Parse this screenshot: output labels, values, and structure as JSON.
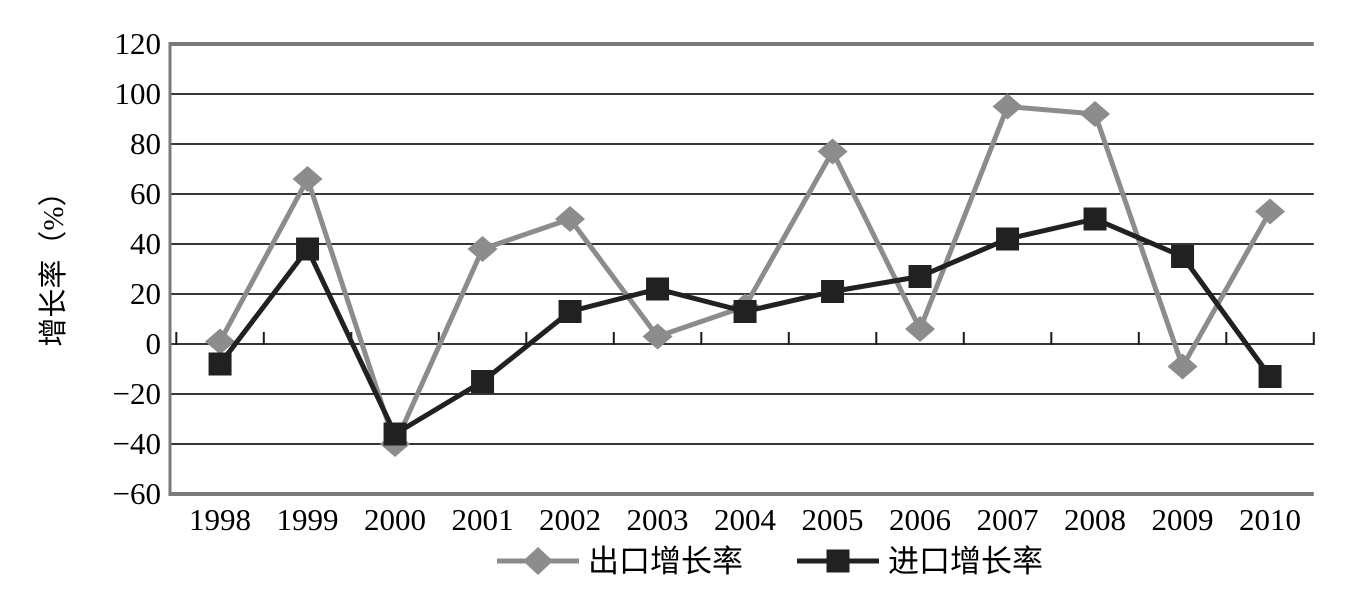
{
  "figure": {
    "background": "#ffffff",
    "colors": {
      "gridline": "#1a1a1a",
      "frame": "#7a7a7a",
      "text": "#000000"
    }
  },
  "chart_data": {
    "type": "line",
    "title": "",
    "xlabel": "",
    "ylabel": "增长率（%）",
    "categories": [
      "1998",
      "1999",
      "2000",
      "2001",
      "2002",
      "2003",
      "2004",
      "2005",
      "2006",
      "2007",
      "2008",
      "2009",
      "2010"
    ],
    "series": [
      {
        "name": "出口增长率",
        "marker": "diamond",
        "color": "#8c8c8c",
        "values": [
          1,
          66,
          -40,
          38,
          50,
          3,
          15,
          77,
          6,
          95,
          92,
          -9,
          53
        ]
      },
      {
        "name": "进口增长率",
        "marker": "square",
        "color": "#212121",
        "values": [
          -8,
          38,
          -36,
          -15,
          13,
          22,
          13,
          21,
          27,
          42,
          50,
          35,
          -13
        ]
      }
    ],
    "ylim": [
      -60,
      120
    ],
    "ytick_step": 20,
    "ytick_labels": [
      "120",
      "100",
      "80",
      "60",
      "40",
      "20",
      "0",
      "−20",
      "−40",
      "−60"
    ],
    "grid": true,
    "legend_position": "bottom"
  }
}
